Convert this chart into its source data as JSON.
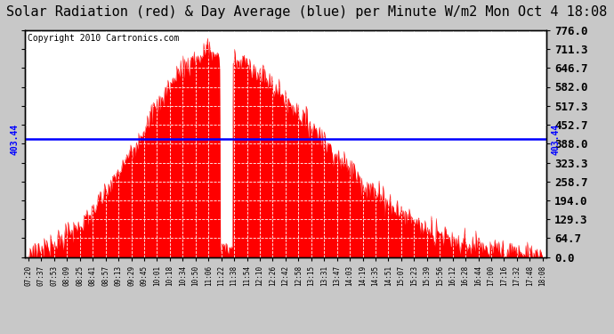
{
  "title": "Solar Radiation (red) & Day Average (blue) per Minute W/m2 Mon Oct 4 18:08",
  "copyright": "Copyright 2010 Cartronics.com",
  "ymin": 0.0,
  "ymax": 776.0,
  "yticks": [
    0.0,
    64.7,
    129.3,
    194.0,
    258.7,
    323.3,
    388.0,
    452.7,
    517.3,
    582.0,
    646.7,
    711.3,
    776.0
  ],
  "average_line": 403.44,
  "average_label": "403.44",
  "fill_color": "#FF0000",
  "line_color": "#0000FF",
  "grid_color": "#FFFFFF",
  "plot_bg": "#FFFFFF",
  "fig_bg": "#C8C8C8",
  "title_fontsize": 11,
  "copyright_fontsize": 7,
  "ytick_fontsize": 9,
  "xtick_labels": [
    "07:20",
    "07:37",
    "07:53",
    "08:09",
    "08:25",
    "08:41",
    "08:57",
    "09:13",
    "09:29",
    "09:45",
    "10:01",
    "10:18",
    "10:34",
    "10:50",
    "11:06",
    "11:22",
    "11:38",
    "11:54",
    "12:10",
    "12:26",
    "12:42",
    "12:58",
    "13:15",
    "13:31",
    "13:47",
    "14:03",
    "14:19",
    "14:35",
    "14:51",
    "15:07",
    "15:23",
    "15:39",
    "15:56",
    "16:12",
    "16:28",
    "16:44",
    "17:00",
    "17:16",
    "17:32",
    "17:48",
    "18:08"
  ]
}
